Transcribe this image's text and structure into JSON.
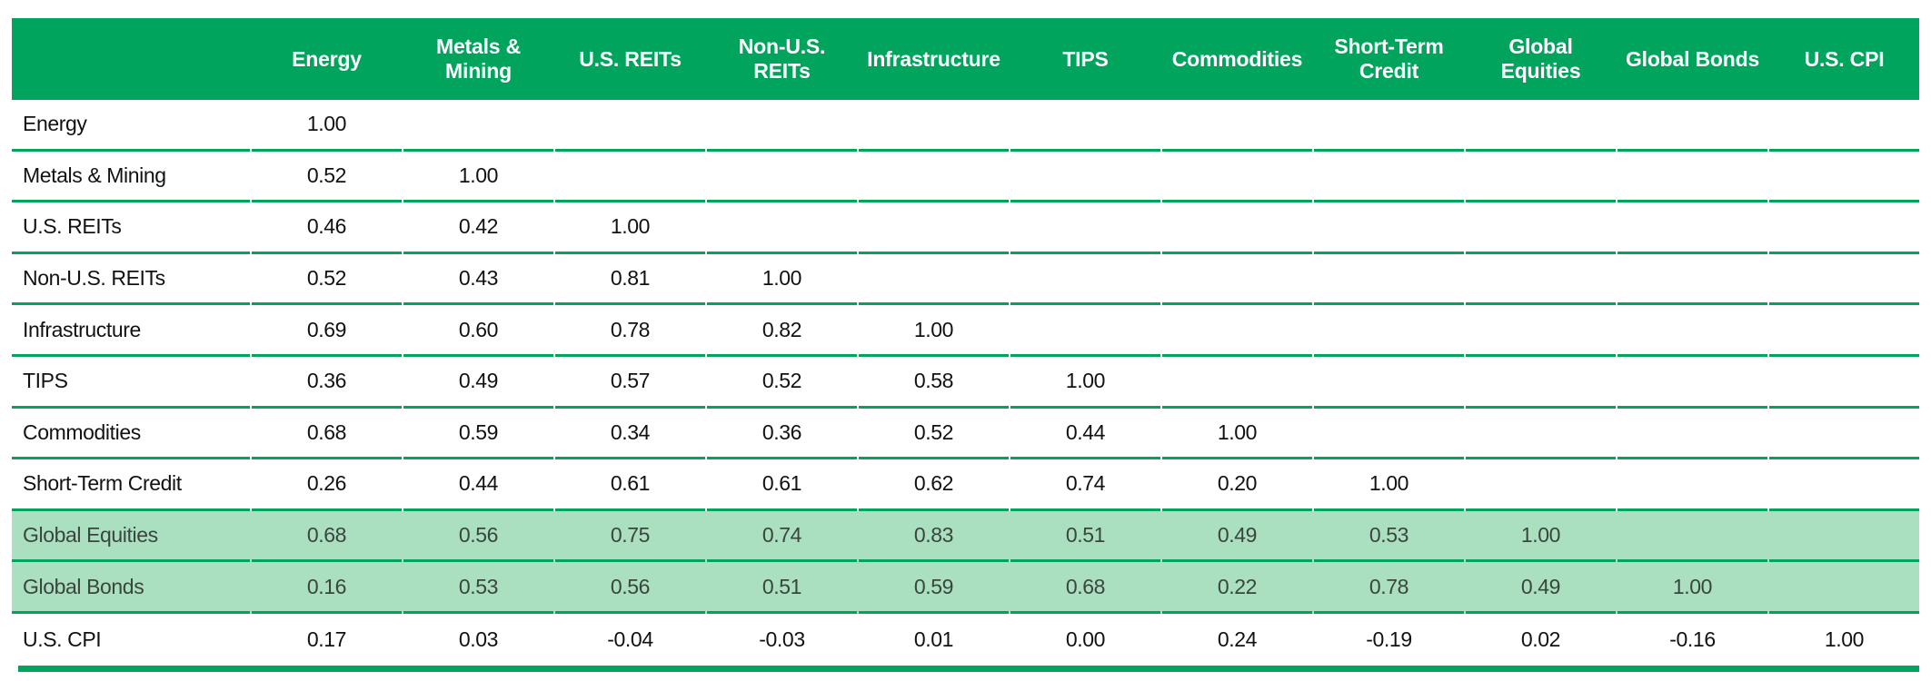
{
  "colors": {
    "header_background": "#00A45C",
    "rule_green": "#00A45C",
    "highlight_row_background": "#AADFC0",
    "header_text": "#ffffff",
    "body_text": "#121212",
    "highlight_row_text": "#3A453E",
    "page_background": "#ffffff"
  },
  "chart_data": {
    "type": "table",
    "description": "Lower-triangular correlation matrix of asset classes; Global Equities and Global Bonds rows highlighted in light green",
    "columns": [
      "Energy",
      "Metals & Mining",
      "U.S. REITs",
      "Non-U.S. REITs",
      "Infrastructure",
      "TIPS",
      "Commodities",
      "Short-Term Credit",
      "Global Equities",
      "Global Bonds",
      "U.S. CPI"
    ],
    "column_header_lines": [
      [
        "Energy"
      ],
      [
        "Metals &",
        "Mining"
      ],
      [
        "U.S. REITs"
      ],
      [
        "Non-U.S.",
        "REITs"
      ],
      [
        "Infrastructure"
      ],
      [
        "TIPS"
      ],
      [
        "Commodities"
      ],
      [
        "Short-Term",
        "Credit"
      ],
      [
        "Global",
        "Equities"
      ],
      [
        "Global Bonds"
      ],
      [
        "U.S. CPI"
      ]
    ],
    "rows": [
      {
        "label": "Energy",
        "highlighted": false,
        "values": [
          "1.00"
        ]
      },
      {
        "label": "Metals & Mining",
        "highlighted": false,
        "values": [
          "0.52",
          "1.00"
        ]
      },
      {
        "label": "U.S. REITs",
        "highlighted": false,
        "values": [
          "0.46",
          "0.42",
          "1.00"
        ]
      },
      {
        "label": "Non-U.S. REITs",
        "highlighted": false,
        "values": [
          "0.52",
          "0.43",
          "0.81",
          "1.00"
        ]
      },
      {
        "label": "Infrastructure",
        "highlighted": false,
        "values": [
          "0.69",
          "0.60",
          "0.78",
          "0.82",
          "1.00"
        ]
      },
      {
        "label": "TIPS",
        "highlighted": false,
        "values": [
          "0.36",
          "0.49",
          "0.57",
          "0.52",
          "0.58",
          "1.00"
        ]
      },
      {
        "label": "Commodities",
        "highlighted": false,
        "values": [
          "0.68",
          "0.59",
          "0.34",
          "0.36",
          "0.52",
          "0.44",
          "1.00"
        ]
      },
      {
        "label": "Short-Term Credit",
        "highlighted": false,
        "values": [
          "0.26",
          "0.44",
          "0.61",
          "0.61",
          "0.62",
          "0.74",
          "0.20",
          "1.00"
        ]
      },
      {
        "label": "Global Equities",
        "highlighted": true,
        "values": [
          "0.68",
          "0.56",
          "0.75",
          "0.74",
          "0.83",
          "0.51",
          "0.49",
          "0.53",
          "1.00"
        ]
      },
      {
        "label": "Global Bonds",
        "highlighted": true,
        "values": [
          "0.16",
          "0.53",
          "0.56",
          "0.51",
          "0.59",
          "0.68",
          "0.22",
          "0.78",
          "0.49",
          "1.00"
        ]
      },
      {
        "label": "U.S. CPI",
        "highlighted": false,
        "values": [
          "0.17",
          "0.03",
          "-0.04",
          "-0.03",
          "0.01",
          "0.00",
          "0.24",
          "-0.19",
          "0.02",
          "-0.16",
          "1.00"
        ]
      }
    ]
  }
}
